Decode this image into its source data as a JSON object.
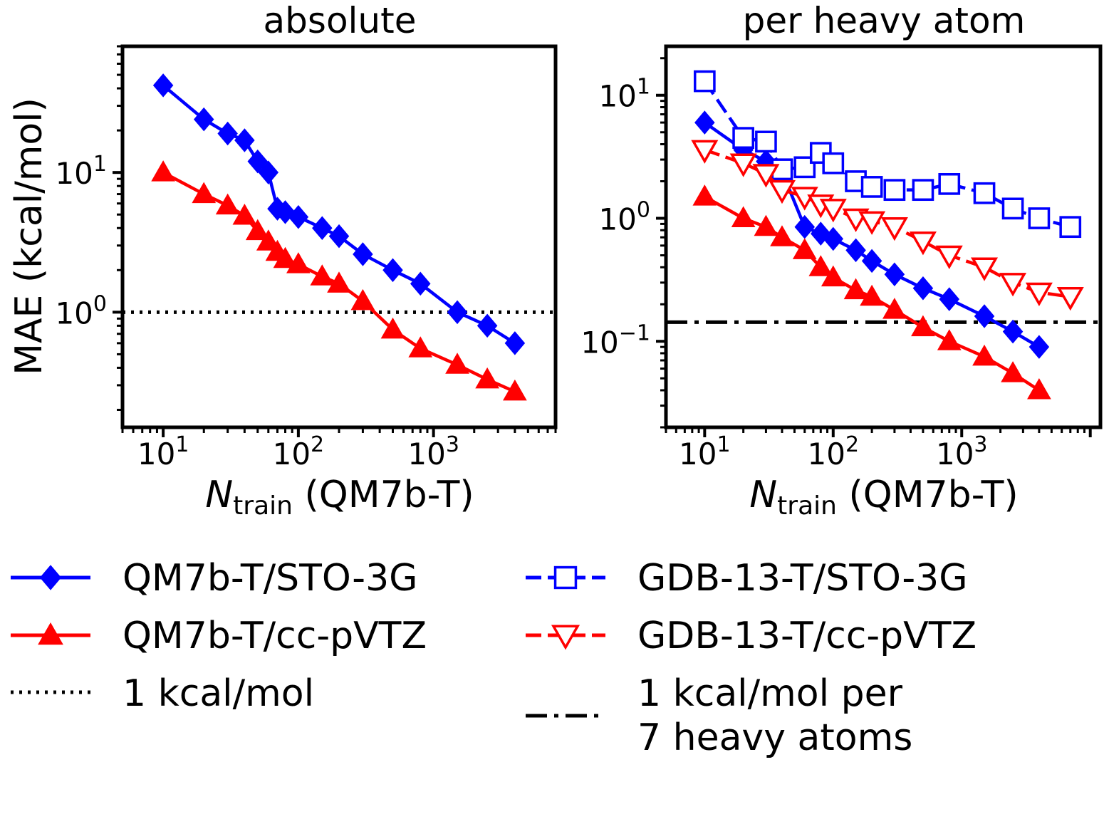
{
  "chart_data": [
    {
      "type": "line",
      "title": "absolute",
      "xlabel_main": "N",
      "xlabel_sub": "train",
      "xlabel_rest": " (QM7b-T)",
      "ylabel": "MAE (kcal/mol)",
      "xscale": "log",
      "yscale": "log",
      "xlim": [
        5,
        8000
      ],
      "ylim": [
        0.15,
        80
      ],
      "xticks": [
        {
          "value": 10,
          "base": "10",
          "exp": "1"
        },
        {
          "value": 100,
          "base": "10",
          "exp": "2"
        },
        {
          "value": 1000,
          "base": "10",
          "exp": "3"
        }
      ],
      "yticks": [
        {
          "value": 1,
          "base": "10",
          "exp": "0"
        },
        {
          "value": 10,
          "base": "10",
          "exp": "1"
        }
      ],
      "hlines": [
        {
          "name": "1 kcal/mol",
          "y": 1,
          "style": "dotted",
          "color": "#000000"
        }
      ],
      "series": [
        {
          "name": "QM7b-T/STO-3G",
          "color": "#0000ff",
          "marker": "diamond",
          "linestyle": "solid",
          "x": [
            10,
            20,
            30,
            40,
            50,
            60,
            70,
            80,
            100,
            150,
            200,
            300,
            500,
            800,
            1500,
            2500,
            4000
          ],
          "y": [
            42,
            24,
            19,
            17,
            12,
            10,
            5.5,
            5.2,
            4.8,
            4.0,
            3.5,
            2.6,
            2.0,
            1.6,
            1.0,
            0.8,
            0.6
          ]
        },
        {
          "name": "QM7b-T/cc-pVTZ",
          "color": "#ff0000",
          "marker": "triangle-up",
          "linestyle": "solid",
          "x": [
            10,
            20,
            30,
            40,
            50,
            60,
            70,
            80,
            100,
            150,
            200,
            300,
            500,
            800,
            1500,
            2500,
            4000
          ],
          "y": [
            10,
            7.0,
            5.8,
            4.9,
            3.8,
            3.2,
            2.7,
            2.4,
            2.2,
            1.8,
            1.6,
            1.2,
            0.75,
            0.55,
            0.42,
            0.33,
            0.27
          ]
        }
      ]
    },
    {
      "type": "line",
      "title": "per heavy atom",
      "xlabel_main": "N",
      "xlabel_sub": "train",
      "xlabel_rest": " (QM7b-T)",
      "ylabel": "",
      "xscale": "log",
      "yscale": "log",
      "xlim": [
        5,
        12000
      ],
      "ylim": [
        0.02,
        25
      ],
      "xticks": [
        {
          "value": 10,
          "base": "10",
          "exp": "1"
        },
        {
          "value": 100,
          "base": "10",
          "exp": "2"
        },
        {
          "value": 1000,
          "base": "10",
          "exp": "3"
        }
      ],
      "yticks": [
        {
          "value": 0.1,
          "base": "10",
          "exp": "−1"
        },
        {
          "value": 1,
          "base": "10",
          "exp": "0"
        },
        {
          "value": 10,
          "base": "10",
          "exp": "1"
        }
      ],
      "hlines": [
        {
          "name": "1 kcal/mol per 7 heavy atoms",
          "y": 0.143,
          "style": "dashdot",
          "color": "#000000"
        }
      ],
      "series": [
        {
          "name": "QM7b-T/STO-3G",
          "color": "#0000ff",
          "marker": "diamond",
          "linestyle": "solid",
          "x": [
            10,
            20,
            30,
            40,
            60,
            80,
            100,
            150,
            200,
            300,
            500,
            800,
            1500,
            2500,
            4000
          ],
          "y": [
            6.0,
            3.6,
            2.9,
            2.4,
            0.85,
            0.75,
            0.68,
            0.55,
            0.45,
            0.35,
            0.27,
            0.22,
            0.16,
            0.12,
            0.09
          ]
        },
        {
          "name": "QM7b-T/cc-pVTZ",
          "color": "#ff0000",
          "marker": "triangle-up",
          "linestyle": "solid",
          "x": [
            10,
            20,
            30,
            40,
            60,
            80,
            100,
            150,
            200,
            300,
            500,
            800,
            1500,
            2500,
            4000
          ],
          "y": [
            1.5,
            1.0,
            0.85,
            0.7,
            0.55,
            0.4,
            0.33,
            0.26,
            0.23,
            0.18,
            0.13,
            0.1,
            0.075,
            0.055,
            0.04
          ]
        },
        {
          "name": "GDB-13-T/STO-3G",
          "color": "#0000ff",
          "marker": "square-open",
          "linestyle": "dashed",
          "x": [
            10,
            20,
            30,
            40,
            60,
            80,
            100,
            150,
            200,
            300,
            500,
            800,
            1500,
            2500,
            4000,
            7000
          ],
          "y": [
            13,
            4.5,
            4.2,
            2.5,
            2.6,
            3.4,
            2.8,
            2.0,
            1.8,
            1.7,
            1.7,
            1.9,
            1.6,
            1.2,
            1.0,
            0.85
          ]
        },
        {
          "name": "GDB-13-T/cc-pVTZ",
          "color": "#ff0000",
          "marker": "triangle-down-open",
          "linestyle": "dashed",
          "x": [
            10,
            20,
            30,
            40,
            60,
            80,
            100,
            150,
            200,
            300,
            500,
            800,
            1500,
            2500,
            4000,
            7000
          ],
          "y": [
            3.6,
            2.8,
            2.3,
            1.7,
            1.5,
            1.3,
            1.2,
            1.0,
            0.95,
            0.85,
            0.65,
            0.5,
            0.4,
            0.3,
            0.25,
            0.23
          ]
        }
      ]
    }
  ],
  "legend": {
    "left": [
      {
        "label": "QM7b-T/STO-3G",
        "color": "#0000ff",
        "marker": "diamond",
        "linestyle": "solid"
      },
      {
        "label": "QM7b-T/cc-pVTZ",
        "color": "#ff0000",
        "marker": "triangle-up",
        "linestyle": "solid"
      },
      {
        "label": "1 kcal/mol",
        "color": "#000000",
        "marker": "none",
        "linestyle": "dotted"
      }
    ],
    "right": [
      {
        "label": "GDB-13-T/STO-3G",
        "color": "#0000ff",
        "marker": "square-open",
        "linestyle": "dashed"
      },
      {
        "label": "GDB-13-T/cc-pVTZ",
        "color": "#ff0000",
        "marker": "triangle-down-open",
        "linestyle": "dashed"
      },
      {
        "label_line1": "1 kcal/mol per",
        "label_line2": "7 heavy atoms",
        "color": "#000000",
        "marker": "none",
        "linestyle": "dashdot"
      }
    ]
  }
}
